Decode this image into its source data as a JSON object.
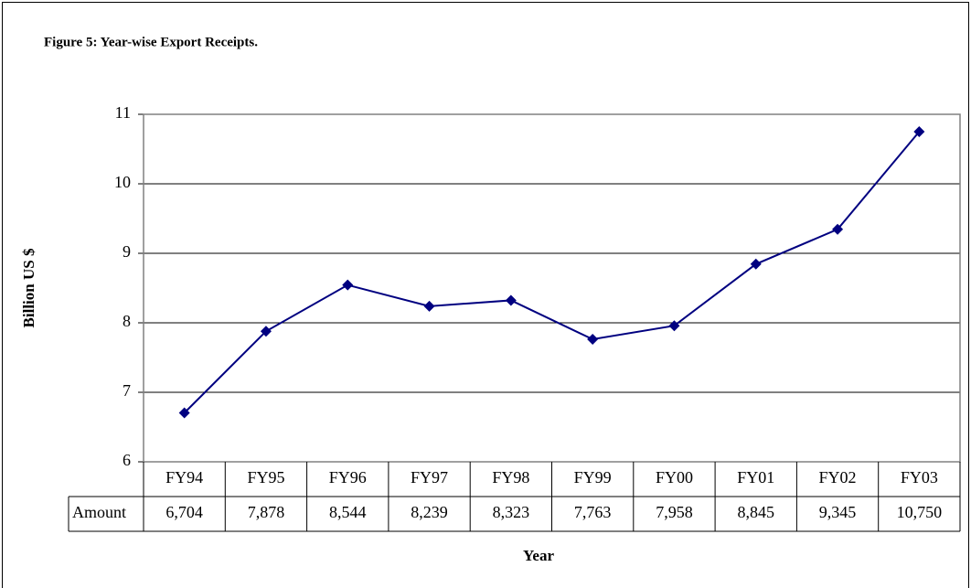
{
  "chart_data": {
    "type": "line",
    "title": "Figure 5: Year-wise Export Receipts.",
    "x_label": "Year",
    "y_label": "Billion US $",
    "table_row_label": "Amount",
    "categories": [
      "FY94",
      "FY95",
      "FY96",
      "FY97",
      "FY98",
      "FY99",
      "FY00",
      "FY01",
      "FY02",
      "FY03"
    ],
    "values": [
      6.704,
      7.878,
      8.544,
      8.239,
      8.323,
      7.763,
      7.958,
      8.845,
      9.345,
      10.75
    ],
    "value_labels": [
      "6,704",
      "7,878",
      "8,544",
      "8,239",
      "8,323",
      "7,763",
      "7,958",
      "8,845",
      "9,345",
      "10,750"
    ],
    "color": "#000080",
    "ylim": [
      6,
      11
    ],
    "yticks": [
      6,
      7,
      8,
      9,
      10,
      11
    ],
    "grid": true
  }
}
